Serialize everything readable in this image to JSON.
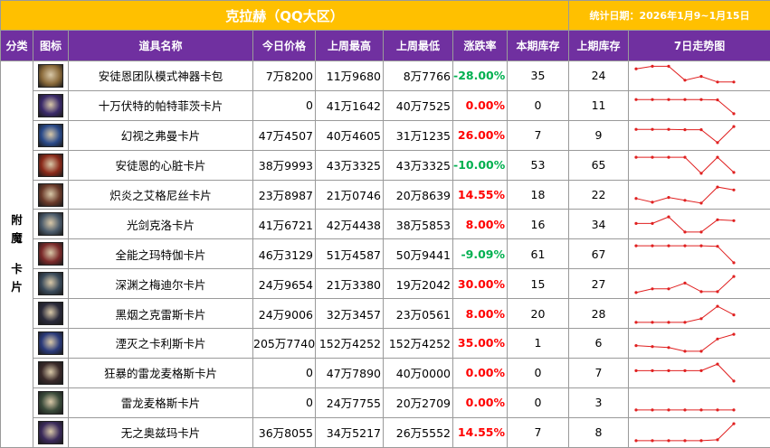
{
  "header": {
    "title": "克拉赫（QQ大区）",
    "date_label": "统计日期：2026年1月9~1月15日"
  },
  "columns": {
    "category": "分类",
    "icon": "图标",
    "name": "道具名称",
    "today_price": "今日价格",
    "last_week_high": "上周最高",
    "last_week_low": "上周最低",
    "change_rate": "涨跌率",
    "this_stock": "本期库存",
    "last_stock": "上期库存",
    "trend": "7日走势图"
  },
  "category_text": [
    "附",
    "魔",
    "卡",
    "片"
  ],
  "colors": {
    "title_bg": "#ffc000",
    "header_bg": "#7030a0",
    "up": "#ff0000",
    "down": "#00b050",
    "spark": "#e02020"
  },
  "rows": [
    {
      "icon": "package-icon",
      "icon_color": "#8a6a3a",
      "name": "安徒恩团队模式神器卡包",
      "today": "7万8200",
      "high": "11万9680",
      "low": "8万7766",
      "change": "-28.00%",
      "dir": "down",
      "this_stock": "35",
      "last_stock": "24",
      "trend": [
        0.85,
        0.98,
        0.98,
        0.25,
        0.45,
        0.15,
        0.15
      ]
    },
    {
      "icon": "card-icon",
      "icon_color": "#3a2a6a",
      "name": "十万伏特的帕特菲茨卡片",
      "today": "0",
      "high": "41万1642",
      "low": "40万7525",
      "change": "0.00%",
      "dir": "zero",
      "this_stock": "0",
      "last_stock": "11",
      "trend": [
        0.8,
        0.8,
        0.8,
        0.8,
        0.8,
        0.78,
        0.05
      ]
    },
    {
      "icon": "card-icon",
      "icon_color": "#2a4a8a",
      "name": "幻视之弗曼卡片",
      "today": "47万4507",
      "high": "40万4605",
      "low": "31万1235",
      "change": "26.00%",
      "dir": "up",
      "this_stock": "7",
      "last_stock": "9",
      "trend": [
        0.8,
        0.8,
        0.8,
        0.78,
        0.78,
        0.1,
        0.95
      ]
    },
    {
      "icon": "card-icon",
      "icon_color": "#8a2a1a",
      "name": "安徒恩的心脏卡片",
      "today": "38万9993",
      "high": "43万3325",
      "low": "43万3325",
      "change": "-10.00%",
      "dir": "down",
      "this_stock": "53",
      "last_stock": "65",
      "trend": [
        0.9,
        0.9,
        0.9,
        0.9,
        0.05,
        0.9,
        0.1
      ]
    },
    {
      "icon": "card-icon",
      "icon_color": "#6a3a2a",
      "name": "炽炎之艾格尼丝卡片",
      "today": "23万8987",
      "high": "21万0746",
      "low": "20万8639",
      "change": "14.55%",
      "dir": "up",
      "this_stock": "18",
      "last_stock": "22",
      "trend": [
        0.3,
        0.1,
        0.35,
        0.2,
        0.05,
        0.9,
        0.75
      ]
    },
    {
      "icon": "card-icon",
      "icon_color": "#4a5a6a",
      "name": "光剑克洛卡片",
      "today": "41万6721",
      "high": "42万4438",
      "low": "38万5853",
      "change": "8.00%",
      "dir": "up",
      "this_stock": "16",
      "last_stock": "34",
      "trend": [
        0.55,
        0.55,
        0.9,
        0.1,
        0.1,
        0.75,
        0.7
      ]
    },
    {
      "icon": "card-icon",
      "icon_color": "#7a2a2a",
      "name": "全能之玛特伽卡片",
      "today": "46万3129",
      "high": "51万4587",
      "low": "50万9441",
      "change": "-9.09%",
      "dir": "down",
      "this_stock": "61",
      "last_stock": "67",
      "trend": [
        0.95,
        0.95,
        0.95,
        0.95,
        0.95,
        0.92,
        0.05
      ]
    },
    {
      "icon": "card-icon",
      "icon_color": "#3a4a5a",
      "name": "深渊之梅迪尔卡片",
      "today": "24万9654",
      "high": "21万3380",
      "low": "19万2042",
      "change": "30.00%",
      "dir": "up",
      "this_stock": "15",
      "last_stock": "27",
      "trend": [
        0.05,
        0.25,
        0.25,
        0.55,
        0.1,
        0.1,
        0.9
      ]
    },
    {
      "icon": "card-icon",
      "icon_color": "#2a2a3a",
      "name": "黑烟之克雷斯卡片",
      "today": "24万9006",
      "high": "32万3457",
      "low": "23万0561",
      "change": "8.00%",
      "dir": "up",
      "this_stock": "20",
      "last_stock": "28",
      "trend": [
        0.05,
        0.05,
        0.05,
        0.05,
        0.25,
        0.9,
        0.45
      ]
    },
    {
      "icon": "card-icon",
      "icon_color": "#2a3a7a",
      "name": "湮灭之卡利斯卡片",
      "today": "205万7740",
      "high": "152万4252",
      "low": "152万4252",
      "change": "35.00%",
      "dir": "up",
      "this_stock": "1",
      "last_stock": "6",
      "trend": [
        0.35,
        0.3,
        0.25,
        0.05,
        0.05,
        0.7,
        0.95
      ]
    },
    {
      "icon": "card-icon",
      "icon_color": "#3a2a2a",
      "name": "狂暴的雷龙麦格斯卡片",
      "today": "0",
      "high": "47万7890",
      "low": "40万0000",
      "change": "0.00%",
      "dir": "zero",
      "this_stock": "0",
      "last_stock": "7",
      "trend": [
        0.6,
        0.6,
        0.6,
        0.6,
        0.6,
        0.95,
        0.05
      ]
    },
    {
      "icon": "card-icon",
      "icon_color": "#3a4a3a",
      "name": "雷龙麦格斯卡片",
      "today": "0",
      "high": "24万7755",
      "low": "20万2709",
      "change": "0.00%",
      "dir": "zero",
      "this_stock": "0",
      "last_stock": "3",
      "trend": [
        0.1,
        0.1,
        0.1,
        0.1,
        0.1,
        0.1,
        0.1
      ]
    },
    {
      "icon": "card-icon",
      "icon_color": "#3a2a5a",
      "name": "无之奥兹玛卡片",
      "today": "36万8055",
      "high": "34万5217",
      "low": "26万5552",
      "change": "14.55%",
      "dir": "up",
      "this_stock": "7",
      "last_stock": "8",
      "trend": [
        0.05,
        0.05,
        0.05,
        0.05,
        0.05,
        0.1,
        0.95
      ]
    }
  ]
}
